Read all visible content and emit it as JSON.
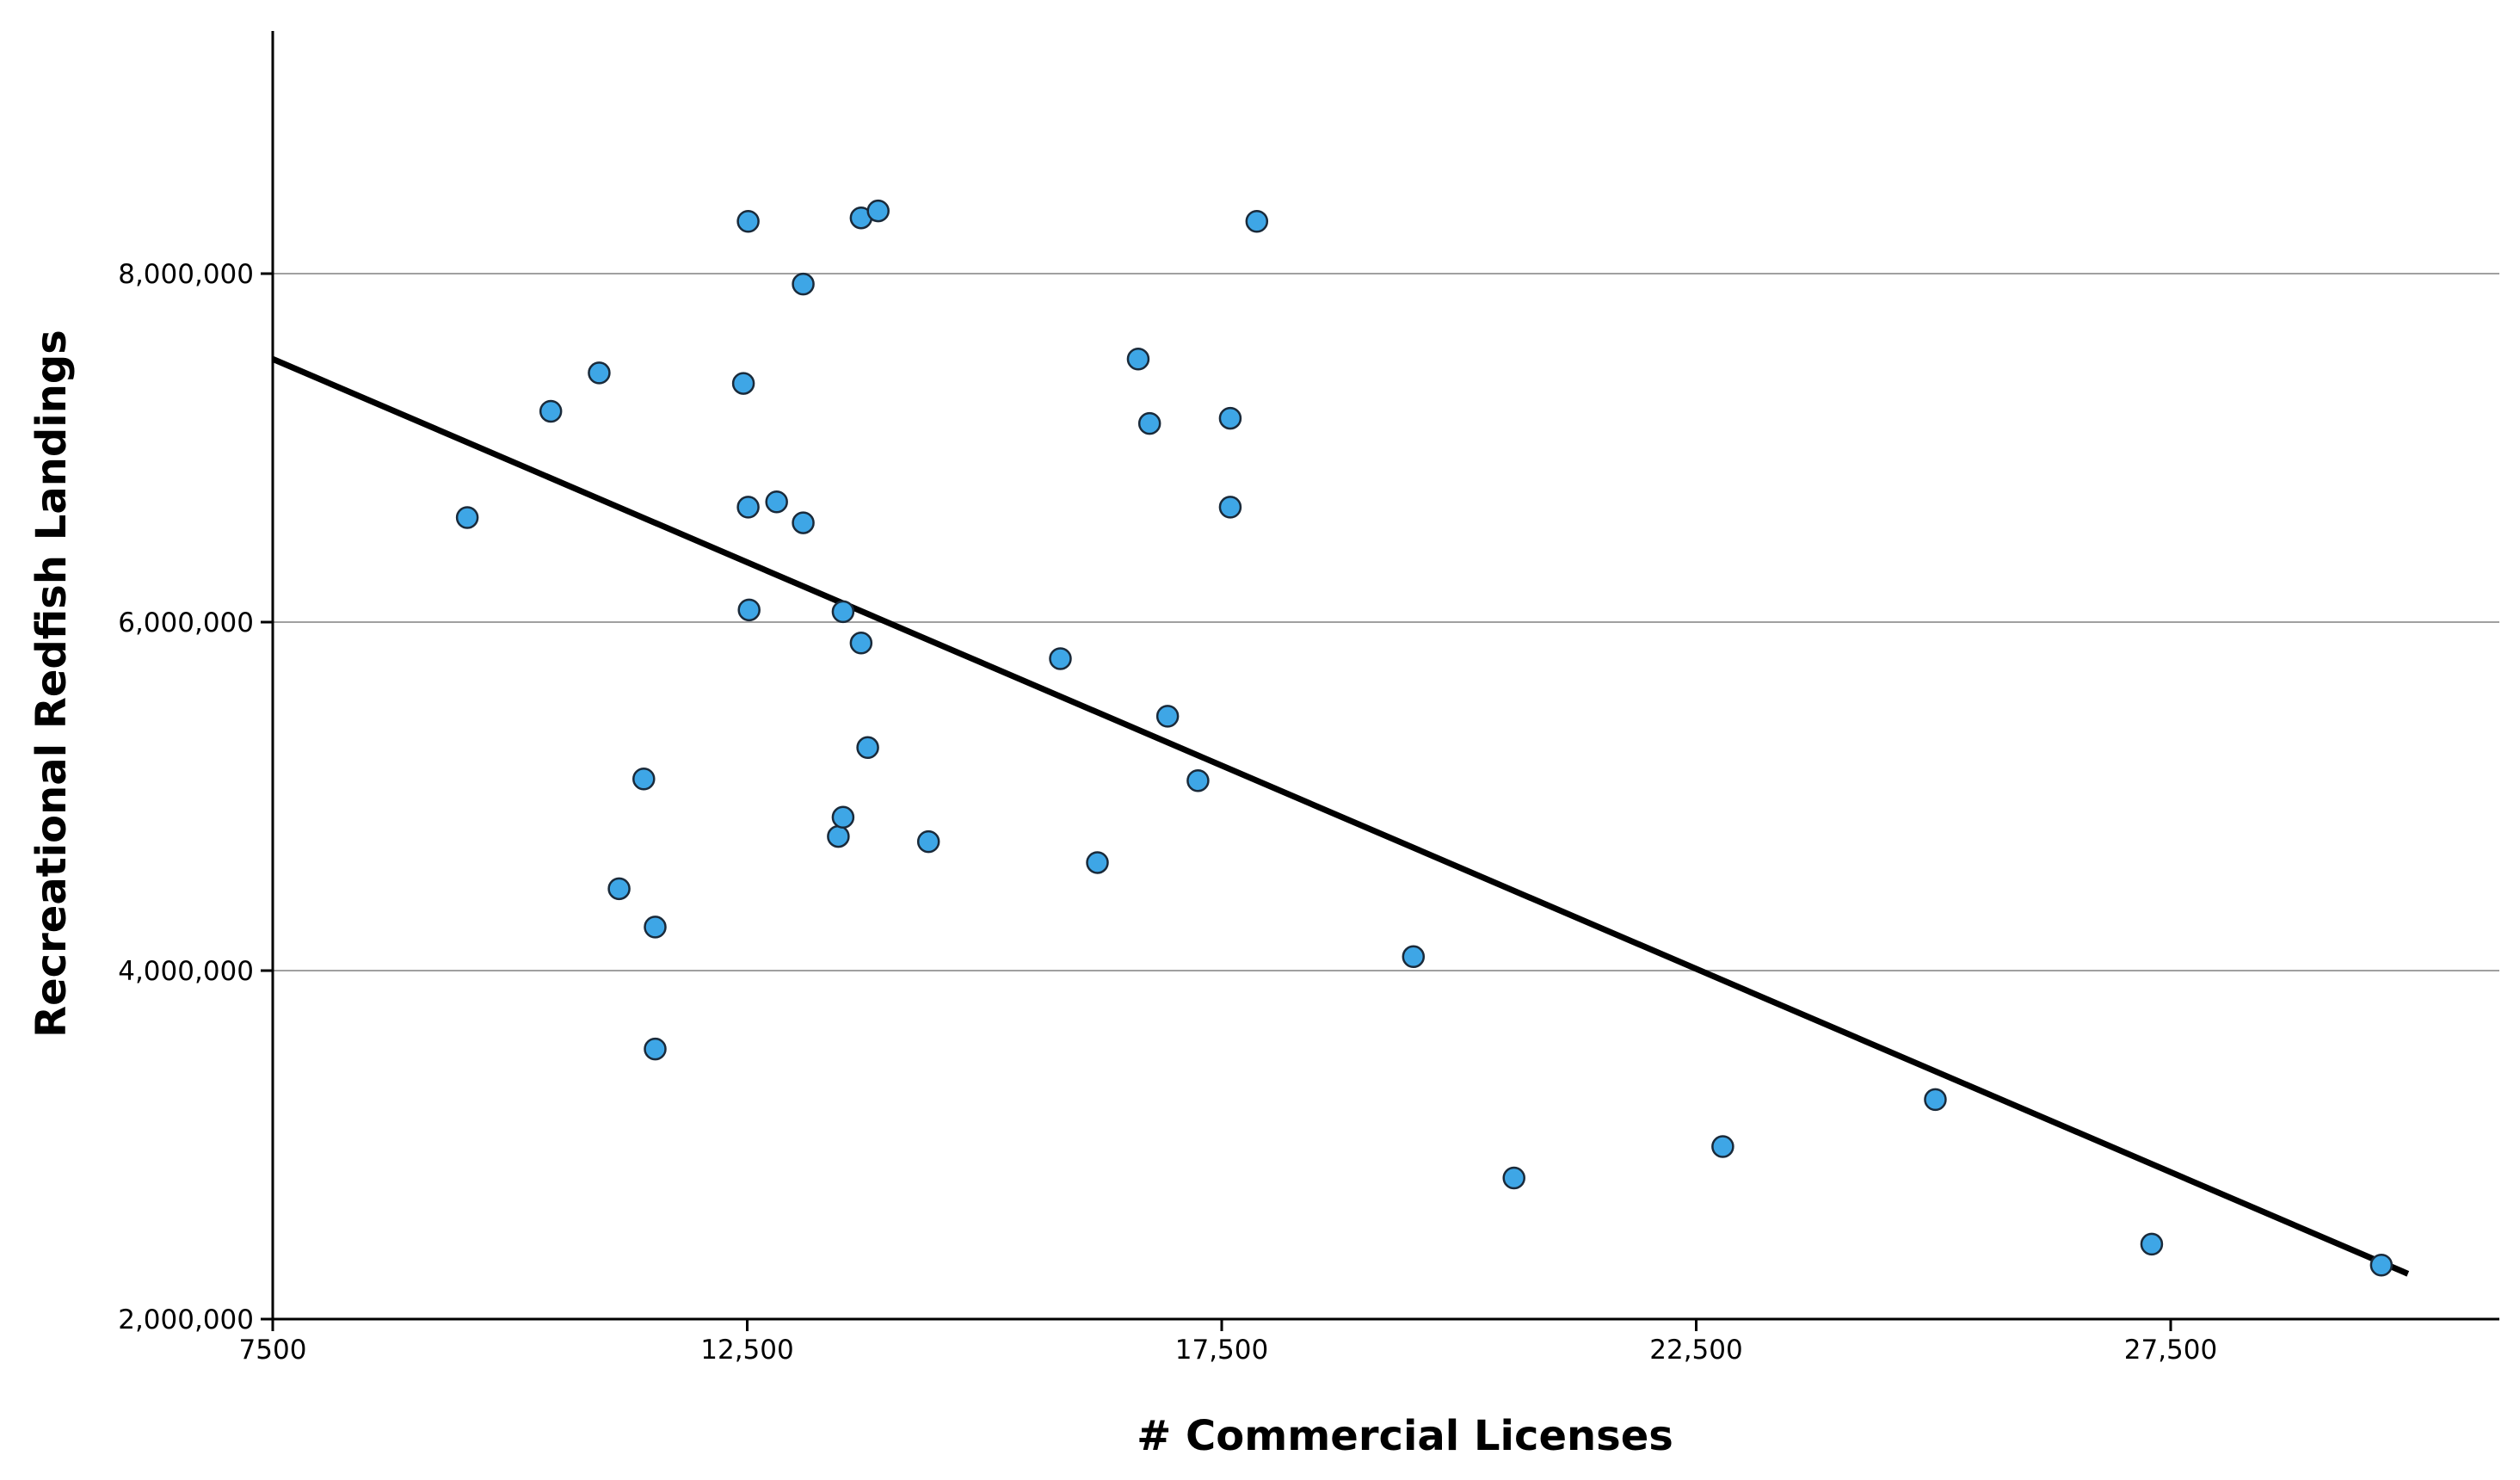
{
  "chart_data": {
    "type": "scatter",
    "title": "",
    "xlabel": "# Commercial Licenses",
    "ylabel": "Recreational Redfish Landings",
    "xlim": [
      7500,
      30000
    ],
    "ylim": [
      2000000,
      9400000
    ],
    "x_ticks": [
      7500,
      12500,
      17500,
      22500,
      27500
    ],
    "x_tick_labels": [
      "7500",
      "12,500",
      "17,500",
      "22,500",
      "27,500"
    ],
    "y_ticks": [
      2000000,
      4000000,
      6000000,
      8000000
    ],
    "y_tick_labels": [
      "2,000,000",
      "4,000,000",
      "6,000,000",
      "8,000,000"
    ],
    "grid": "horizontal",
    "colors": {
      "point_fill": "#3ea6e6",
      "point_stroke": "#1a2a3a",
      "fit_line": "#000000",
      "gridline": "#a0a0a0"
    },
    "fit_line": [
      {
        "x": 7500,
        "y": 7510000
      },
      {
        "x": 30000,
        "y": 2260000
      }
    ],
    "points": [
      {
        "x": 9550,
        "y": 6600000
      },
      {
        "x": 10430,
        "y": 7210000
      },
      {
        "x": 10940,
        "y": 7430000
      },
      {
        "x": 11150,
        "y": 4470000
      },
      {
        "x": 11410,
        "y": 5100000
      },
      {
        "x": 11530,
        "y": 4250000
      },
      {
        "x": 11530,
        "y": 3550000
      },
      {
        "x": 12460,
        "y": 7370000
      },
      {
        "x": 12510,
        "y": 8300000
      },
      {
        "x": 12510,
        "y": 6660000
      },
      {
        "x": 12520,
        "y": 6070000
      },
      {
        "x": 12810,
        "y": 6690000
      },
      {
        "x": 13090,
        "y": 7940000
      },
      {
        "x": 13090,
        "y": 6570000
      },
      {
        "x": 13460,
        "y": 4770000
      },
      {
        "x": 13510,
        "y": 4880000
      },
      {
        "x": 13510,
        "y": 6060000
      },
      {
        "x": 13700,
        "y": 8320000
      },
      {
        "x": 13700,
        "y": 5880000
      },
      {
        "x": 13770,
        "y": 5280000
      },
      {
        "x": 13880,
        "y": 8360000
      },
      {
        "x": 14410,
        "y": 4740000
      },
      {
        "x": 15800,
        "y": 5790000
      },
      {
        "x": 16190,
        "y": 4620000
      },
      {
        "x": 16620,
        "y": 7510000
      },
      {
        "x": 16740,
        "y": 7140000
      },
      {
        "x": 16930,
        "y": 5460000
      },
      {
        "x": 17250,
        "y": 5090000
      },
      {
        "x": 17590,
        "y": 7170000
      },
      {
        "x": 17590,
        "y": 6660000
      },
      {
        "x": 17870,
        "y": 8300000
      },
      {
        "x": 19520,
        "y": 4080000
      },
      {
        "x": 20580,
        "y": 2810000
      },
      {
        "x": 22780,
        "y": 2990000
      },
      {
        "x": 25020,
        "y": 3260000
      },
      {
        "x": 27300,
        "y": 2430000
      },
      {
        "x": 29720,
        "y": 2310000
      }
    ]
  }
}
